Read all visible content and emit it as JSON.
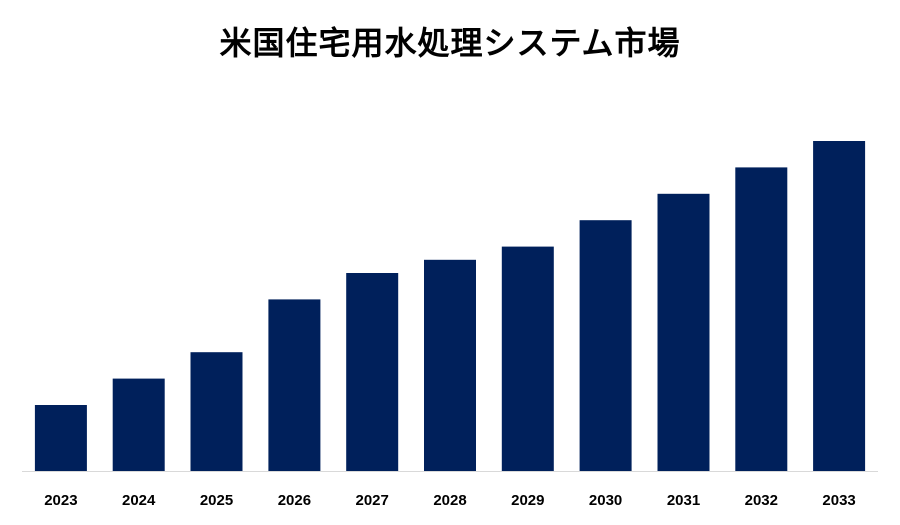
{
  "chart_data": {
    "type": "bar",
    "title": "米国住宅用水処理システム市場",
    "xlabel": "",
    "ylabel": "",
    "categories": [
      "2023",
      "2024",
      "2025",
      "2026",
      "2027",
      "2028",
      "2029",
      "2030",
      "2031",
      "2032",
      "2033"
    ],
    "values": [
      2.0,
      2.8,
      3.6,
      5.2,
      6.0,
      6.4,
      6.8,
      7.6,
      8.4,
      9.2,
      10.0
    ],
    "ylim": [
      0,
      12
    ],
    "grid": false,
    "legend": "none",
    "colors": {
      "bar": "#00205b",
      "baseline": "#d9d9d9"
    }
  }
}
